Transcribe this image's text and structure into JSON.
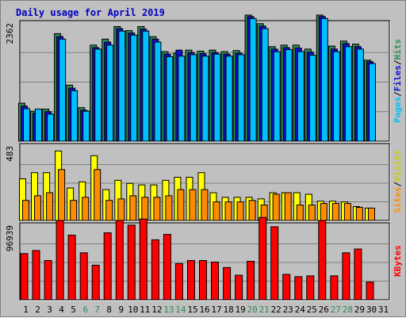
{
  "chart_data": {
    "title": "Daily usage for April 2019",
    "type": "bar",
    "days": [
      "1",
      "2",
      "3",
      "4",
      "5",
      "6",
      "7",
      "8",
      "9",
      "10",
      "11",
      "12",
      "13",
      "14",
      "15",
      "16",
      "17",
      "18",
      "19",
      "20",
      "21",
      "22",
      "23",
      "24",
      "25",
      "26",
      "27",
      "28",
      "29",
      "30",
      "31"
    ],
    "weekend_days": [
      "6",
      "7",
      "13",
      "14",
      "20",
      "21",
      "27",
      "28"
    ],
    "panels": {
      "hits_panel": {
        "ymax_label": "2362",
        "ymax": 2362,
        "series": [
          {
            "name": "Hits",
            "color": "#2e8b57",
            "values": [
              760,
              600,
              640,
              2150,
              1120,
              670,
              1920,
              2040,
              2290,
              2210,
              2290,
              2090,
              1790,
              1760,
              1820,
              1800,
              1820,
              1790,
              1810,
              2520,
              2350,
              1890,
              1920,
              1920,
              1840,
              2520,
              1900,
              2000,
              1940,
              1620,
              0
            ]
          },
          {
            "name": "Files",
            "color": "#1010d0",
            "values": [
              700,
              560,
              590,
              2090,
              1060,
              620,
              1870,
              1980,
              2250,
              2160,
              2240,
              2040,
              1740,
              1820,
              1770,
              1750,
              1770,
              1740,
              1760,
              2490,
              2300,
              1840,
              1870,
              1860,
              1780,
              2490,
              1840,
              1950,
              1890,
              1590,
              0
            ]
          },
          {
            "name": "Pages",
            "color": "#00bfff",
            "values": [
              650,
              640,
              540,
              2040,
              1010,
              600,
              1840,
              1920,
              2200,
              2120,
              2200,
              1980,
              1690,
              1700,
              1730,
              1700,
              1740,
              1700,
              1730,
              2450,
              2250,
              1790,
              1830,
              1790,
              1720,
              2450,
              1790,
              1890,
              1840,
              1550,
              0
            ]
          }
        ]
      },
      "visits_panel": {
        "ymax_label": "483",
        "ymax": 483,
        "series": [
          {
            "name": "Visits",
            "color": "#ffff00",
            "values": [
              270,
              310,
              310,
              450,
              210,
              250,
              420,
              200,
              260,
              240,
              230,
              230,
              260,
              280,
              280,
              310,
              180,
              150,
              150,
              150,
              140,
              180,
              180,
              180,
              170,
              125,
              125,
              120,
              90,
              80,
              0
            ]
          },
          {
            "name": "Sites",
            "color": "#ff8c00",
            "values": [
              130,
              160,
              180,
              330,
              130,
              150,
              330,
              130,
              140,
              160,
              150,
              150,
              160,
              200,
              200,
              200,
              120,
              120,
              120,
              130,
              100,
              170,
              180,
              100,
              100,
              110,
              110,
              110,
              85,
              80,
              0
            ]
          }
        ]
      },
      "kbytes_panel": {
        "ymax_label": "96939",
        "ymax": 96939,
        "series": [
          {
            "name": "KBytes",
            "color": "#ff0000",
            "values": [
              60000,
              64000,
              51000,
              103000,
              84000,
              61000,
              45000,
              87000,
              103000,
              97000,
              105000,
              78000,
              85000,
              47000,
              51000,
              51000,
              49000,
              42000,
              32000,
              50000,
              107000,
              95000,
              33000,
              30000,
              31000,
              103000,
              31000,
              61000,
              66000,
              23000,
              0
            ]
          }
        ]
      }
    },
    "legends": {
      "hits_panel": [
        {
          "label": "Pages",
          "color": "#00bfff"
        },
        {
          "sep": "/",
          "color": "#000000"
        },
        {
          "label": "Files",
          "color": "#1010d0"
        },
        {
          "sep": "/",
          "color": "#000000"
        },
        {
          "label": "Hits",
          "color": "#2e8b57"
        }
      ],
      "visits_panel": [
        {
          "label": "Sites",
          "color": "#ff8c00"
        },
        {
          "sep": "/",
          "color": "#000000"
        },
        {
          "label": "Visits",
          "color": "#cccc00"
        }
      ],
      "kbytes_panel": [
        {
          "label": "KBytes",
          "color": "#ff0000"
        }
      ]
    },
    "colors": {
      "title": "#0000c0",
      "weekend_label": "#2e8b57",
      "weekday_label": "#000000",
      "panel_bg": "#c0c0c0",
      "grid": "#808080"
    }
  }
}
